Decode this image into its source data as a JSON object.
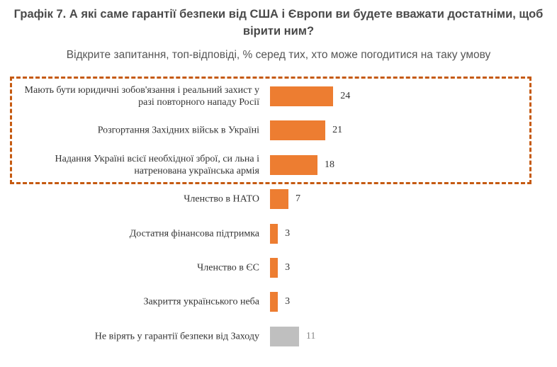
{
  "chart_data": {
    "type": "bar",
    "title": "Графік 7. А які саме гарантії безпеки від США і Європи ви будете вважати достатніми, щоб вірити ним?",
    "subtitle": "Відкрите запитання, топ-відповіді, % серед тих, хто може погодитися на таку умову",
    "categories": [
      "Мають бути юридичні зобов'язання і реальний захист у разі повторного нападу Росії",
      "Розгортання Західних військ в Україні",
      "Надання Україні всієї необхідної зброї, си льна і натренована українська армія",
      "Членство в НАТО",
      "Достатня фінансова підтримка",
      "Членство в ЄС",
      "Закриття українського неба",
      "Не вірять у гарантії безпеки від Заходу"
    ],
    "values": [
      24,
      21,
      18,
      7,
      3,
      3,
      3,
      11
    ],
    "colors": [
      "#ed7d31",
      "#ed7d31",
      "#ed7d31",
      "#ed7d31",
      "#ed7d31",
      "#ed7d31",
      "#ed7d31",
      "#bfbfbf"
    ]
  }
}
